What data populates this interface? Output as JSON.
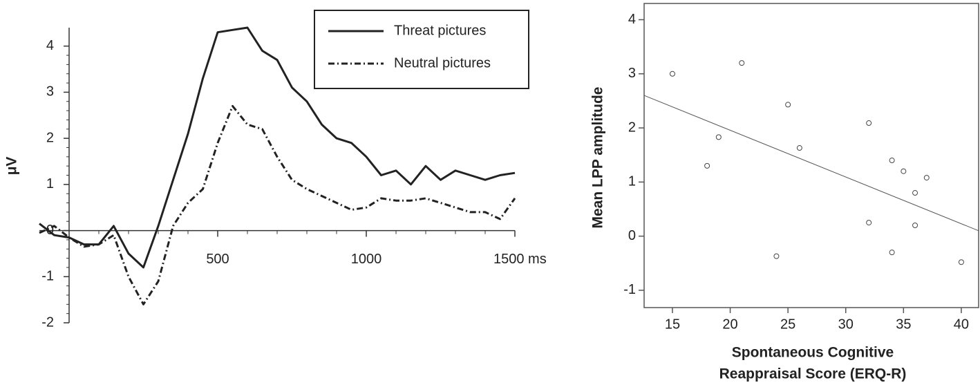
{
  "chart_data": [
    {
      "type": "line",
      "ylabel": "μV",
      "x": [
        -100,
        -50,
        0,
        50,
        100,
        150,
        200,
        250,
        300,
        350,
        400,
        450,
        500,
        550,
        600,
        650,
        700,
        750,
        800,
        850,
        900,
        950,
        1000,
        1050,
        1100,
        1150,
        1200,
        1250,
        1300,
        1350,
        1400,
        1450,
        1500
      ],
      "series": [
        {
          "name": "Threat pictures",
          "color": "#222222",
          "style": "solid",
          "values": [
            0.15,
            -0.1,
            -0.15,
            -0.3,
            -0.3,
            0.1,
            -0.5,
            -0.8,
            0.1,
            1.1,
            2.1,
            3.3,
            4.3,
            4.35,
            4.4,
            3.9,
            3.7,
            3.1,
            2.8,
            2.3,
            2.0,
            1.9,
            1.6,
            1.2,
            1.3,
            1.0,
            1.4,
            1.1,
            1.3,
            1.2,
            1.1,
            1.2,
            1.25
          ]
        },
        {
          "name": "Neutral pictures",
          "color": "#222222",
          "style": "dashdot",
          "values": [
            -0.05,
            0.1,
            -0.15,
            -0.35,
            -0.3,
            -0.1,
            -1.0,
            -1.6,
            -1.1,
            0.1,
            0.6,
            0.9,
            1.9,
            2.7,
            2.3,
            2.2,
            1.6,
            1.1,
            0.9,
            0.75,
            0.6,
            0.45,
            0.5,
            0.7,
            0.65,
            0.65,
            0.7,
            0.6,
            0.5,
            0.4,
            0.4,
            0.25,
            0.7
          ]
        }
      ],
      "xlim": [
        -100,
        1500
      ],
      "xticks": [
        500,
        1000,
        {
          "value": 1500,
          "label": "1500 ms"
        }
      ],
      "ylim": [
        -2,
        4.4
      ],
      "yticks": [
        -2,
        -1,
        0,
        1,
        2,
        3,
        4
      ],
      "legend": "upper right"
    },
    {
      "type": "scatter",
      "ylabel": "Mean LPP amplitude",
      "xlabel": [
        "Spontaneous Cognitive",
        "Reappraisal Score (ERQ-R)"
      ],
      "x": [
        15,
        18,
        19,
        21,
        24,
        25,
        26,
        32,
        32,
        34,
        34,
        35,
        36,
        36,
        37,
        40
      ],
      "values": [
        3.0,
        1.3,
        1.83,
        3.2,
        -0.37,
        2.43,
        1.63,
        2.09,
        0.25,
        1.4,
        -0.3,
        1.2,
        0.8,
        0.2,
        1.08,
        -0.48
      ],
      "color": "#444444",
      "trendline": {
        "x": [
          12.55,
          41.5
        ],
        "y": [
          2.6,
          0.1
        ]
      },
      "xlim": [
        12.55,
        41.5
      ],
      "xticks": [
        15,
        20,
        25,
        30,
        35,
        40
      ],
      "ylim": [
        -1.32,
        4.3
      ],
      "yticks": [
        -1,
        0,
        1,
        2,
        3,
        4
      ]
    }
  ]
}
